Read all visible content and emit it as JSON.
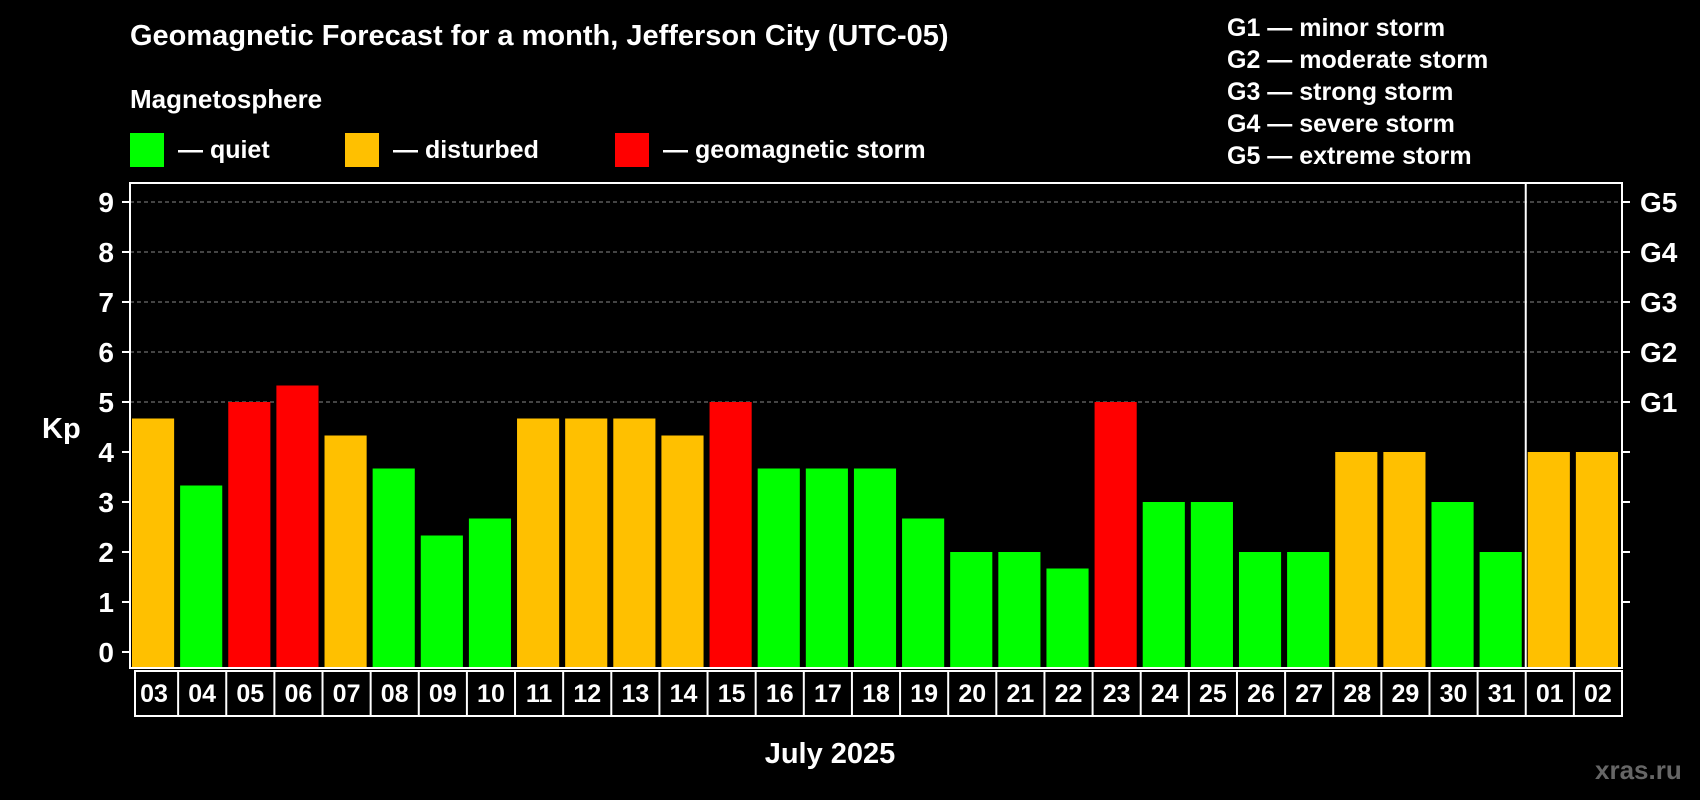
{
  "title": "Geomagnetic Forecast for a month, Jefferson City (UTC-05)",
  "legend": {
    "heading": "Magnetosphere",
    "items": [
      {
        "label": "— quiet",
        "color": "#00ff00"
      },
      {
        "label": "— disturbed",
        "color": "#ffc000"
      },
      {
        "label": "— geomagnetic storm",
        "color": "#ff0000"
      }
    ]
  },
  "storm_scale": [
    "G1 — minor storm",
    "G2 — moderate storm",
    "G3 — strong storm",
    "G4 — severe storm",
    "G5 — extreme storm"
  ],
  "watermark": "xras.ru",
  "colors": {
    "quiet": "#00ff00",
    "disturbed": "#ffc000",
    "storm": "#ff0000"
  },
  "chart_data": {
    "type": "bar",
    "ylabel": "Kp",
    "xlabel": "July 2025",
    "ylim": [
      0,
      9
    ],
    "yticks": [
      0,
      1,
      2,
      3,
      4,
      5,
      6,
      7,
      8,
      9
    ],
    "right_axis_labels": [
      {
        "kp": 5,
        "label": "G1"
      },
      {
        "kp": 6,
        "label": "G2"
      },
      {
        "kp": 7,
        "label": "G3"
      },
      {
        "kp": 8,
        "label": "G4"
      },
      {
        "kp": 9,
        "label": "G5"
      }
    ],
    "grid": "dashed horizontal at Kp 5–9",
    "month_separator_before": "01",
    "categories": [
      "03",
      "04",
      "05",
      "06",
      "07",
      "08",
      "09",
      "10",
      "11",
      "12",
      "13",
      "14",
      "15",
      "16",
      "17",
      "18",
      "19",
      "20",
      "21",
      "22",
      "23",
      "24",
      "25",
      "26",
      "27",
      "28",
      "29",
      "30",
      "31",
      "01",
      "02"
    ],
    "values": [
      4.67,
      3.33,
      5,
      5.33,
      4.33,
      3.67,
      2.33,
      2.67,
      4.67,
      4.67,
      4.67,
      4.33,
      5,
      3.67,
      3.67,
      3.67,
      2.67,
      2,
      2,
      1.67,
      5,
      3,
      3,
      2,
      2,
      4,
      4,
      3,
      2,
      4,
      4
    ],
    "levels": [
      "disturbed",
      "quiet",
      "storm",
      "storm",
      "disturbed",
      "quiet",
      "quiet",
      "quiet",
      "disturbed",
      "disturbed",
      "disturbed",
      "disturbed",
      "storm",
      "quiet",
      "quiet",
      "quiet",
      "quiet",
      "quiet",
      "quiet",
      "quiet",
      "storm",
      "quiet",
      "quiet",
      "quiet",
      "quiet",
      "disturbed",
      "disturbed",
      "quiet",
      "quiet",
      "disturbed",
      "disturbed"
    ]
  }
}
